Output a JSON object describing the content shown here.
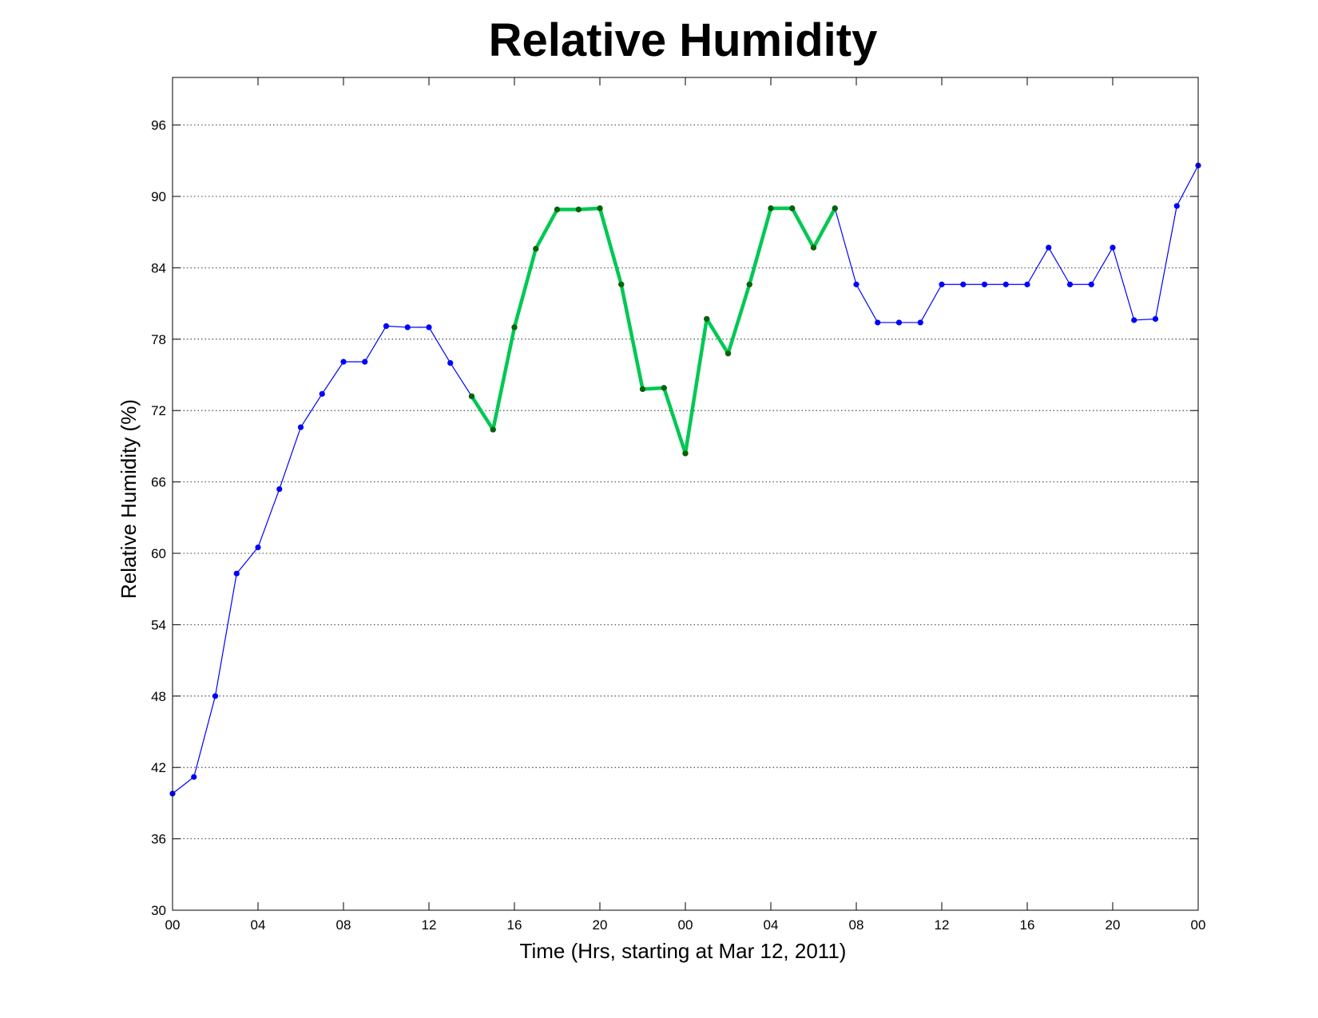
{
  "chart_data": {
    "type": "line",
    "title": "Relative Humidity",
    "xlabel": "Time (Hrs, starting at Mar 12, 2011)",
    "ylabel": "Relative Humidity (%)",
    "ylim": [
      30,
      100
    ],
    "xlim": [
      0,
      48
    ],
    "x_ticks": [
      0,
      4,
      8,
      12,
      16,
      20,
      24,
      28,
      32,
      36,
      40,
      44,
      48
    ],
    "x_tick_labels": [
      "00",
      "04",
      "08",
      "12",
      "16",
      "20",
      "00",
      "04",
      "08",
      "12",
      "16",
      "20",
      "00"
    ],
    "y_ticks": [
      30,
      36,
      42,
      48,
      54,
      60,
      66,
      72,
      78,
      84,
      90,
      96
    ],
    "y_tick_labels": [
      "30",
      "36",
      "42",
      "48",
      "54",
      "60",
      "66",
      "72",
      "78",
      "84",
      "90",
      "96"
    ],
    "grid": "horizontal dotted",
    "series": [
      {
        "color": "#0000ff",
        "x": [
          0,
          1,
          2,
          3,
          4,
          5,
          6,
          7,
          8,
          9,
          10,
          11,
          12,
          13,
          14,
          15,
          16,
          17,
          18,
          19,
          20,
          21,
          22,
          23,
          24,
          25,
          26,
          27,
          28,
          29,
          30,
          31,
          32,
          33,
          34,
          35,
          36,
          37,
          38,
          39,
          40,
          41,
          42,
          43,
          44,
          45,
          46,
          47,
          48
        ],
        "values": [
          39.8,
          41.2,
          48.0,
          58.3,
          60.5,
          65.4,
          70.6,
          73.4,
          76.1,
          76.1,
          79.1,
          79.0,
          79.0,
          76.0,
          73.2,
          70.4,
          79.0,
          85.6,
          88.9,
          88.9,
          89.0,
          82.6,
          73.8,
          73.9,
          68.4,
          79.7,
          76.8,
          82.6,
          89.0,
          89.0,
          85.7,
          89.0,
          82.6,
          79.4,
          79.4,
          79.4,
          82.6,
          82.6,
          82.6,
          82.6,
          82.6,
          85.7,
          82.6,
          82.6,
          85.7,
          79.6,
          79.7,
          89.2,
          92.6
        ]
      },
      {
        "color": "#00c853",
        "marker_color": "#006400",
        "x": [
          14,
          15,
          16,
          17,
          18,
          19,
          20,
          21,
          22,
          23,
          24,
          25,
          26,
          27,
          28,
          29,
          30,
          31
        ],
        "values": [
          73.2,
          70.4,
          79.0,
          85.6,
          88.9,
          88.9,
          89.0,
          82.6,
          73.8,
          73.9,
          68.4,
          79.7,
          76.8,
          82.6,
          89.0,
          89.0,
          85.7,
          89.0
        ]
      }
    ]
  }
}
